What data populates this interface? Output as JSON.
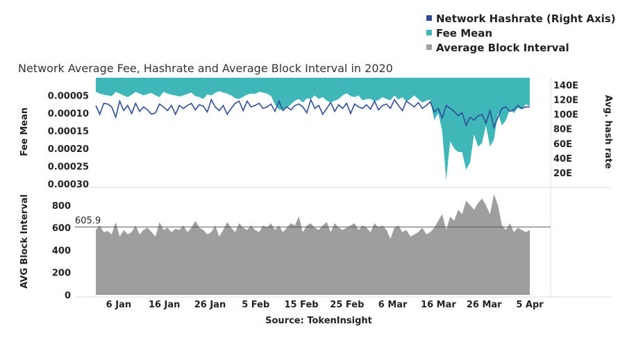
{
  "title": "Network Average Fee, Hashrate and Average Block Interval in 2020",
  "source": "Source: TokenInsight",
  "colors": {
    "hashrate": "#2f4b9a",
    "fee": "#3fb7b8",
    "block": "#9e9e9e"
  },
  "legend": [
    {
      "name": "Network Hashrate (Right Axis)",
      "color": "#2f4b9a",
      "shape": "square-small"
    },
    {
      "name": "Fee Mean",
      "color": "#3fb7b8",
      "shape": "square-small"
    },
    {
      "name": "Average Block Interval",
      "color": "#9e9e9e",
      "shape": "square-small"
    }
  ],
  "chart_data": [
    {
      "type": "line+area",
      "x_start": "2020-01-01",
      "x_end": "2020-04-05",
      "x_tick_labels": [
        "6 Jan",
        "16 Jan",
        "26 Jan",
        "5 Feb",
        "15 Feb",
        "25 Feb",
        "6 Mar",
        "16 Mar",
        "26 Mar",
        "5 Apr"
      ],
      "left_axis": {
        "label": "Fee Mean",
        "reversed": true,
        "ylim": [
          0,
          0.00031
        ],
        "ticks": [
          "0.00005",
          "0.00010",
          "0.00015",
          "0.00020",
          "0.00025",
          "0.00030"
        ]
      },
      "right_axis": {
        "label": "Avg. hash rate",
        "ylim": [
          0,
          150
        ],
        "ticks": [
          "20E",
          "40E",
          "60E",
          "80E",
          "100E",
          "120E",
          "140E"
        ]
      },
      "series": [
        {
          "name": "Fee Mean",
          "axis": "left",
          "values": [
            4e-05,
            4.5e-05,
            4.8e-05,
            5e-05,
            5.2e-05,
            4e-05,
            4.5e-05,
            5e-05,
            5.5e-05,
            4.8e-05,
            4e-05,
            4.5e-05,
            5e-05,
            4.6e-05,
            4.3e-05,
            5e-05,
            5.5e-05,
            4e-05,
            4.5e-05,
            4.8e-05,
            5e-05,
            5.3e-05,
            5e-05,
            4.6e-05,
            4.2e-05,
            5.2e-05,
            5.5e-05,
            6e-05,
            4.7e-05,
            5e-05,
            4.3e-05,
            3.8e-05,
            4.2e-05,
            4.5e-05,
            5e-05,
            5.8e-05,
            6e-05,
            5.4e-05,
            4.8e-05,
            4.5e-05,
            4.6e-05,
            4e-05,
            4.2e-05,
            4.5e-05,
            5.2e-05,
            7.5e-05,
            9e-05,
            9e-05,
            8.5e-05,
            7.5e-05,
            6.5e-05,
            6e-05,
            7e-05,
            5.8e-05,
            6e-05,
            5e-05,
            6e-05,
            5.5e-05,
            6.5e-05,
            7e-05,
            6.5e-05,
            6e-05,
            5e-05,
            4.4e-05,
            5.2e-05,
            5.5e-05,
            5e-05,
            6.4e-05,
            6e-05,
            6e-05,
            6.7e-05,
            6.3e-05,
            5.5e-05,
            6e-05,
            6.4e-05,
            5e-05,
            6.2e-05,
            5.5e-05,
            6.7e-05,
            6e-05,
            5e-05,
            6e-05,
            7e-05,
            6.5e-05,
            6.2e-05,
            0.00012,
            0.0001,
            0.00015,
            0.00029,
            0.00018,
            0.0002,
            0.00021,
            0.00021,
            0.00026,
            0.00024,
            0.00016,
            0.000195,
            0.000185,
            0.000135,
            0.000195,
            0.000175,
            0.0001,
            0.000135,
            0.00012,
            9e-05,
            0.0001,
            8.5e-05,
            9e-05,
            7.5e-05,
            8e-05
          ]
        },
        {
          "name": "Network Hashrate (Right Axis)",
          "axis": "right",
          "values": [
            112,
            100,
            115,
            114,
            110,
            96,
            118,
            105,
            112,
            101,
            115,
            104,
            110,
            106,
            100,
            102,
            114,
            110,
            105,
            112,
            100,
            112,
            108,
            112,
            115,
            106,
            113,
            111,
            103,
            120,
            110,
            105,
            112,
            100,
            108,
            115,
            118,
            105,
            118,
            110,
            112,
            115,
            108,
            110,
            114,
            104,
            118,
            105,
            110,
            106,
            112,
            114,
            110,
            102,
            120,
            108,
            112,
            100,
            108,
            116,
            104,
            113,
            108,
            115,
            101,
            114,
            110,
            108,
            113,
            107,
            118,
            106,
            112,
            114,
            108,
            120,
            112,
            105,
            118,
            114,
            110,
            116,
            108,
            112,
            117,
            103,
            108,
            95,
            112,
            108,
            104,
            98,
            102,
            85,
            96,
            92,
            98,
            100,
            88,
            105,
            82,
            96,
            108,
            110,
            104,
            106,
            112,
            108,
            110,
            110
          ]
        },
        {
          "name": "Average Block Interval",
          "axis": "block",
          "values": [
            580,
            620,
            560,
            570,
            540,
            650,
            520,
            580,
            540,
            560,
            620,
            540,
            580,
            600,
            560,
            520,
            650,
            580,
            600,
            560,
            590,
            580,
            620,
            560,
            600,
            660,
            600,
            580,
            540,
            560,
            620,
            520,
            580,
            650,
            600,
            560,
            640,
            600,
            580,
            620,
            580,
            560,
            620,
            600,
            640,
            580,
            620,
            560,
            600,
            640,
            620,
            700,
            560,
            620,
            640,
            600,
            580,
            620,
            650,
            560,
            640,
            600,
            580,
            600,
            620,
            640,
            580,
            620,
            600,
            560,
            640,
            600,
            620,
            580,
            500,
            600,
            620,
            560,
            580,
            520,
            540,
            560,
            600,
            540,
            560,
            600,
            660,
            720,
            580,
            700,
            660,
            760,
            720,
            840,
            800,
            760,
            820,
            860,
            800,
            720,
            900,
            800,
            620,
            580,
            640,
            560,
            600,
            580,
            560,
            580
          ]
        }
      ]
    },
    {
      "type": "area",
      "name": "Average Block Interval",
      "y_axis": {
        "label": "AVG Block Interval",
        "ylim": [
          0,
          960
        ],
        "ticks": [
          "0",
          "200",
          "400",
          "600",
          "800"
        ]
      },
      "reference_line": {
        "value": 605.9,
        "label": "605.9"
      }
    }
  ]
}
